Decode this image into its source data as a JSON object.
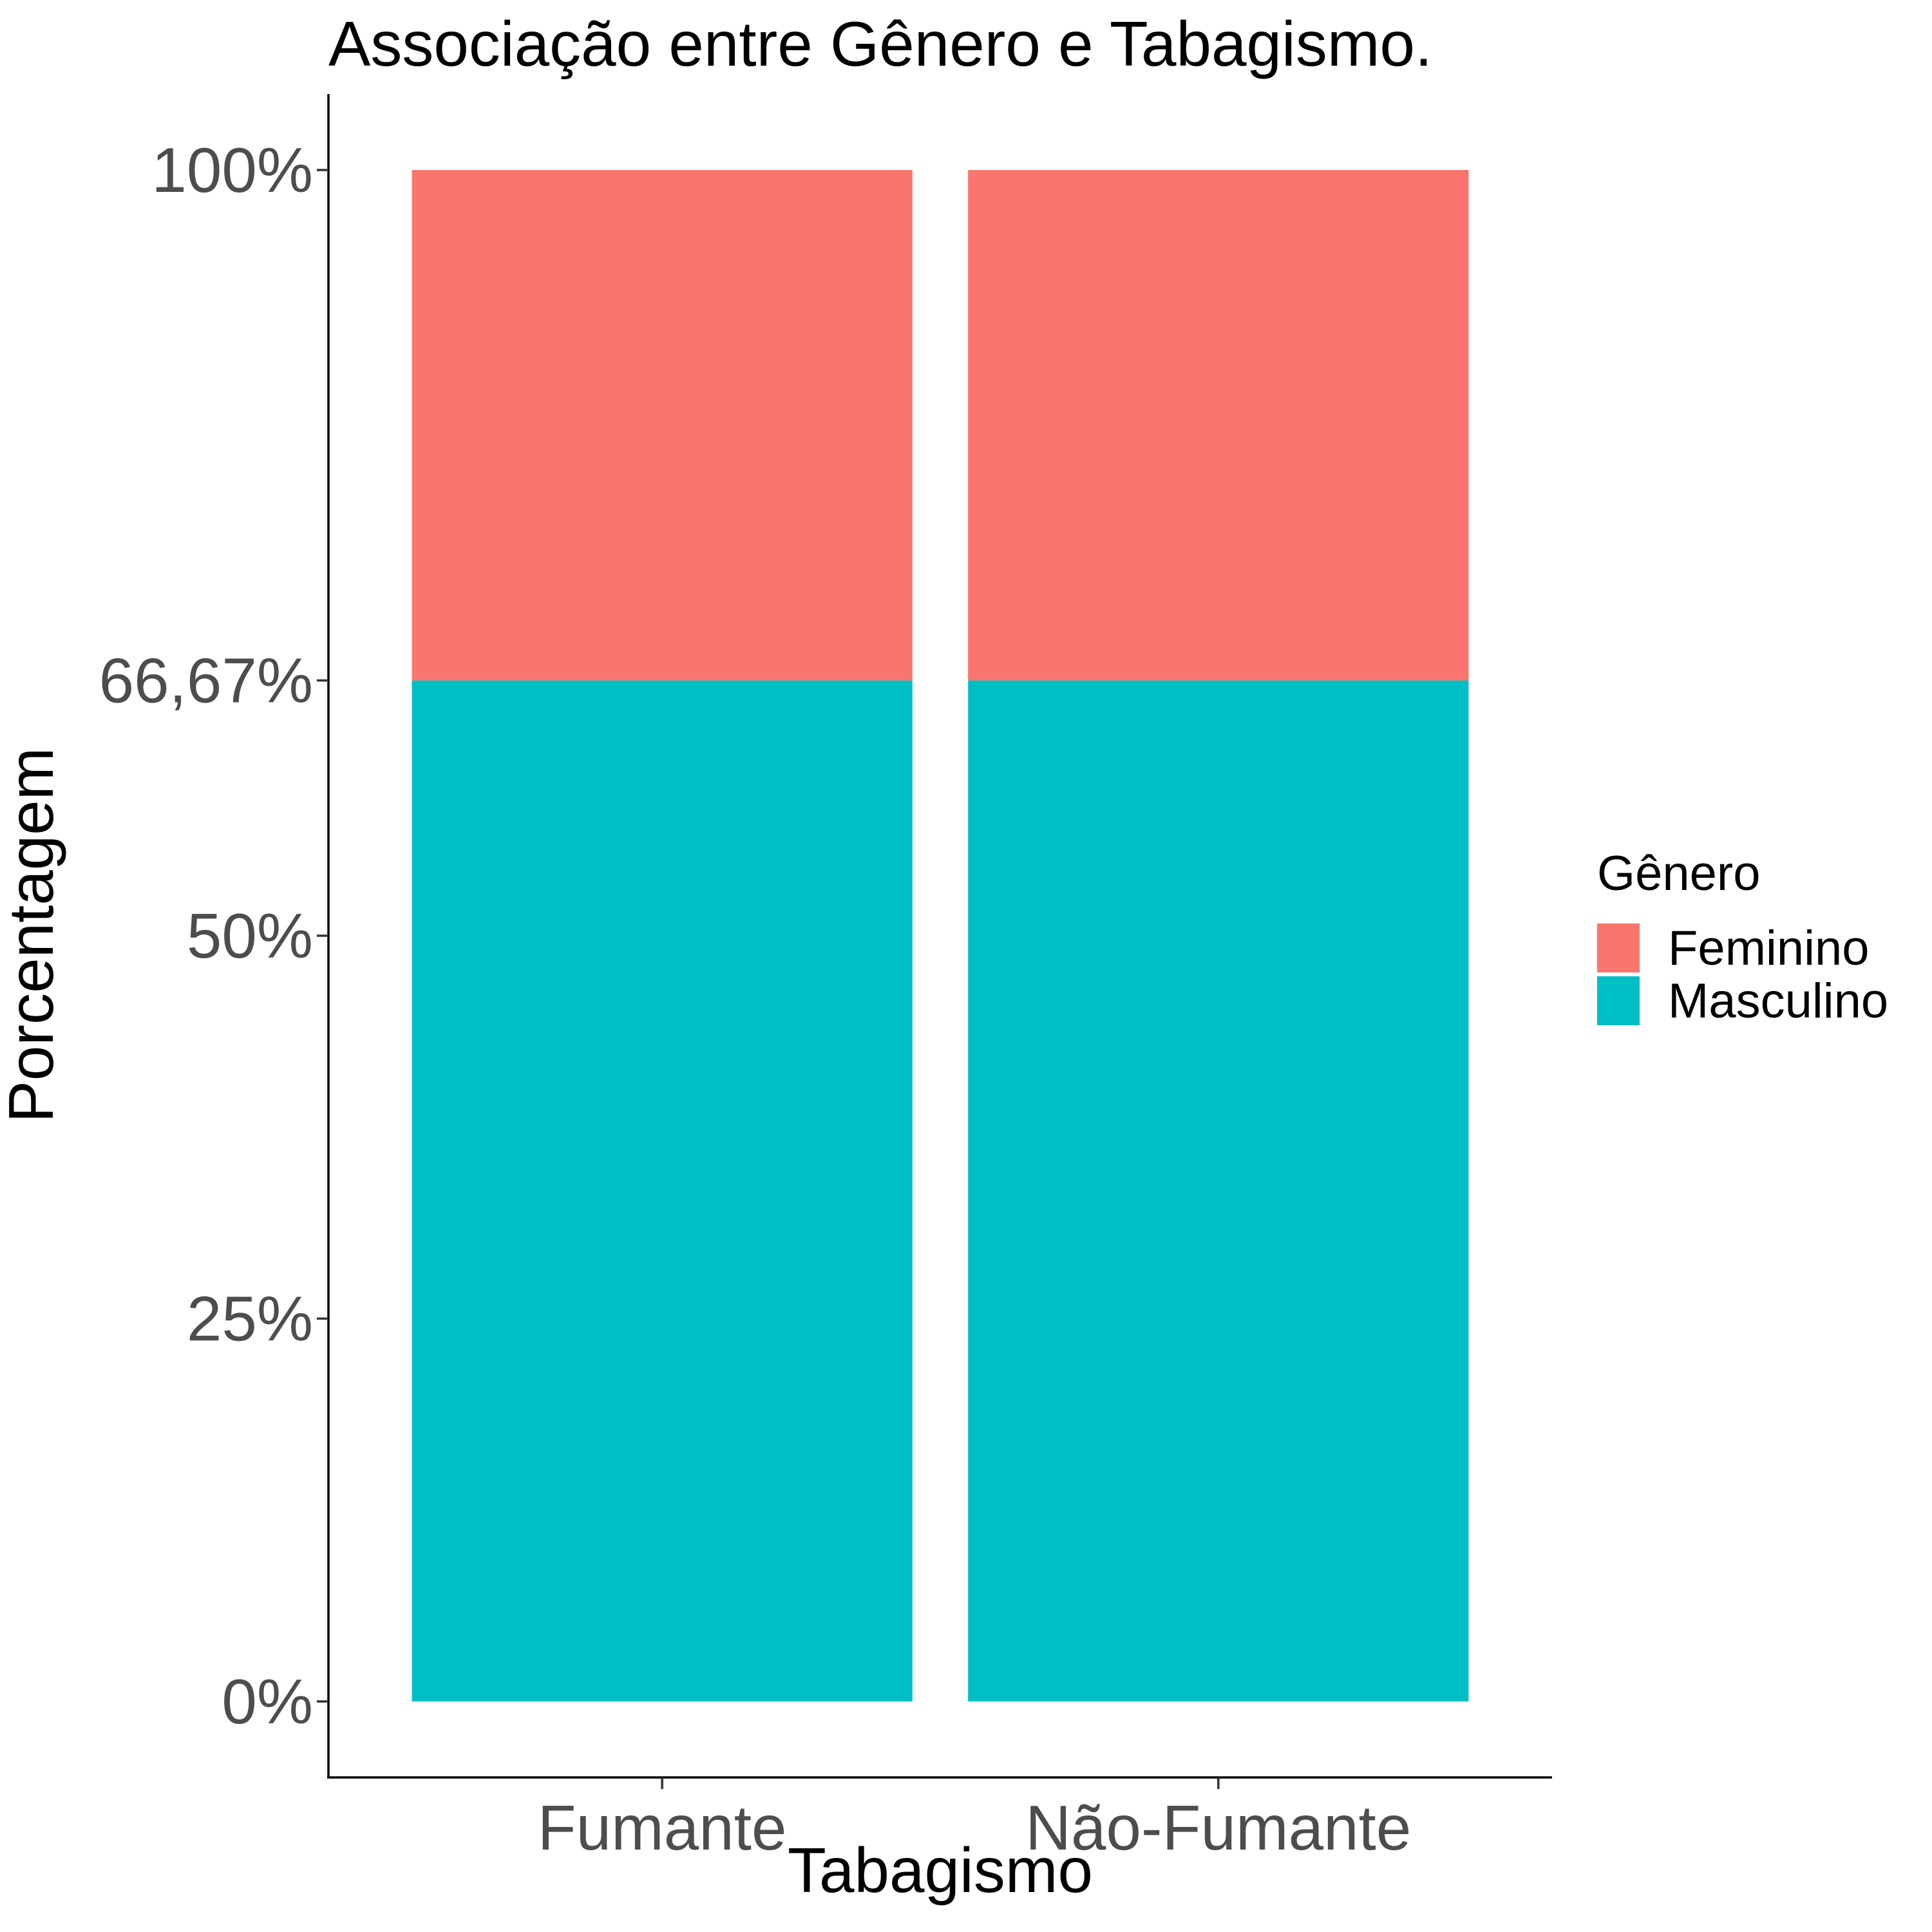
{
  "chart_data": {
    "type": "bar",
    "stacked": true,
    "title": "Associação entre Gênero e Tabagismo.",
    "xlabel": "Tabagismo",
    "ylabel": "Porcentagem",
    "categories": [
      "Fumante",
      "Não-Fumante"
    ],
    "series": [
      {
        "name": "Masculino",
        "color": "#00BFC4",
        "values": [
          66.67,
          66.67
        ]
      },
      {
        "name": "Feminino",
        "color": "#F8766D",
        "values": [
          33.33,
          33.33
        ]
      }
    ],
    "ylim": [
      0,
      100
    ],
    "yticks": [
      0,
      25,
      50,
      66.67,
      100
    ],
    "ytick_labels": [
      "0%",
      "25%",
      "50%",
      "66,67%",
      "100%"
    ],
    "legend": {
      "title": "Gênero",
      "position": "right",
      "entries": [
        {
          "label": "Feminino",
          "color": "#F8766D"
        },
        {
          "label": "Masculino",
          "color": "#00BFC4"
        }
      ]
    },
    "grid": false
  }
}
